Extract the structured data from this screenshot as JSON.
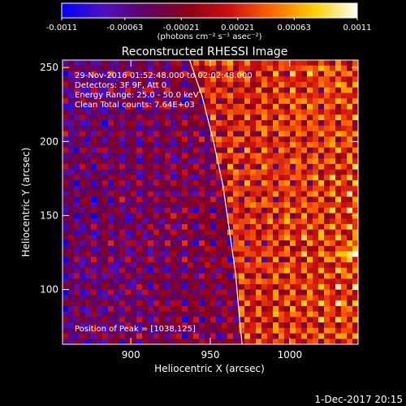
{
  "chart_data": {
    "type": "heatmap",
    "title": "Reconstructed RHESSI Image",
    "xlabel": "Heliocentric X (arcsec)",
    "ylabel": "Heliocentric Y (arcsec)",
    "xlim": [
      857,
      1043
    ],
    "ylim": [
      63,
      255
    ],
    "x_ticks": [
      900,
      950,
      1000
    ],
    "y_ticks": [
      100,
      150,
      200,
      250
    ],
    "x_tick_labels": [
      "900",
      "950",
      "1000"
    ],
    "y_tick_labels": [
      "100",
      "150",
      "200",
      "250"
    ],
    "colorbar": {
      "min": -0.0011,
      "max": 0.0011,
      "ticks": [
        -0.0011,
        -0.00063,
        -0.00021,
        0.00021,
        0.00063,
        0.0011
      ],
      "tick_labels": [
        "-0.0011",
        "-0.00063",
        "-0.00021",
        "0.00021",
        "0.00063",
        "0.0011"
      ],
      "unit_label": "(photons cm⁻² s⁻¹ asec⁻²)",
      "colors": [
        "#0000ff",
        "#5010c0",
        "#600060",
        "#8a0018",
        "#d01010",
        "#ff6a00",
        "#ffd000",
        "#ffffff"
      ]
    },
    "annotations": {
      "time_range": "29-Nov-2016 01:52:48.000 to 02:02:48.000",
      "detectors": "Detectors: 3F 9F, Att 0",
      "energy": "Energy Range: 25.0 - 50.0 keV",
      "method": "Clean    Total counts: 7.64E+03",
      "peak": "Position of Peak = [1038,125]"
    },
    "peak": [
      1038,
      125
    ],
    "limb": [
      [
        937,
        255
      ],
      [
        945,
        230
      ],
      [
        952,
        200
      ],
      [
        958,
        170
      ],
      [
        962,
        140
      ],
      [
        966,
        110
      ],
      [
        968,
        85
      ],
      [
        970,
        63
      ]
    ],
    "grid": {
      "nx": 52,
      "ny": 52
    }
  },
  "footer": {
    "date": "1-Dec-2017 20:15"
  }
}
